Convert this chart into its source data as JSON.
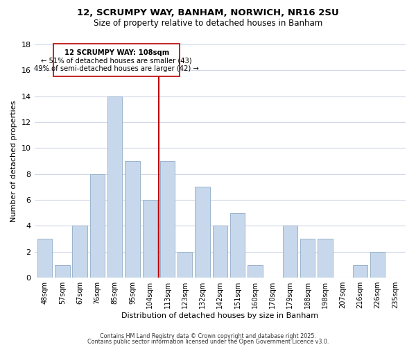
{
  "title": "12, SCRUMPY WAY, BANHAM, NORWICH, NR16 2SU",
  "subtitle": "Size of property relative to detached houses in Banham",
  "xlabel": "Distribution of detached houses by size in Banham",
  "ylabel": "Number of detached properties",
  "bar_color": "#c8d8ec",
  "bar_edge_color": "#9ab4cc",
  "categories": [
    "48sqm",
    "57sqm",
    "67sqm",
    "76sqm",
    "85sqm",
    "95sqm",
    "104sqm",
    "113sqm",
    "123sqm",
    "132sqm",
    "142sqm",
    "151sqm",
    "160sqm",
    "170sqm",
    "179sqm",
    "188sqm",
    "198sqm",
    "207sqm",
    "216sqm",
    "226sqm",
    "235sqm"
  ],
  "values": [
    3,
    1,
    4,
    8,
    14,
    9,
    6,
    9,
    2,
    7,
    4,
    5,
    1,
    0,
    4,
    3,
    3,
    0,
    1,
    2,
    0
  ],
  "ylim": [
    0,
    18
  ],
  "yticks": [
    0,
    2,
    4,
    6,
    8,
    10,
    12,
    14,
    16,
    18
  ],
  "property_line_x": 6.5,
  "property_line_color": "#bb0000",
  "annotation_title": "12 SCRUMPY WAY: 108sqm",
  "annotation_line1": "← 51% of detached houses are smaller (43)",
  "annotation_line2": "49% of semi-detached houses are larger (42) →",
  "annotation_box_color": "#ffffff",
  "annotation_box_edge_color": "#bb0000",
  "footer1": "Contains HM Land Registry data © Crown copyright and database right 2025.",
  "footer2": "Contains public sector information licensed under the Open Government Licence v3.0.",
  "background_color": "#ffffff",
  "grid_color": "#d0d8e8"
}
